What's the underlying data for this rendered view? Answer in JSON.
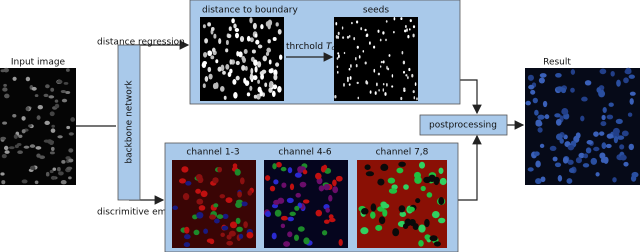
{
  "input": {
    "label": "Input image"
  },
  "backbone": {
    "label": "backbone network"
  },
  "branches": {
    "regression": "distance regression",
    "embedding": "discrimitive embedding"
  },
  "regression_panel": {
    "distance_label": "distance to boundary",
    "threshold": {
      "text": "thrchold",
      "symbol": "T",
      "subscript": "c"
    },
    "seeds_label": "seeds"
  },
  "embedding_panel": {
    "channels": [
      "channel 1-3",
      "channel 4-6",
      "channel 7,8"
    ]
  },
  "postprocessing": {
    "label": "postprocessing"
  },
  "result": {
    "label": "Result"
  }
}
